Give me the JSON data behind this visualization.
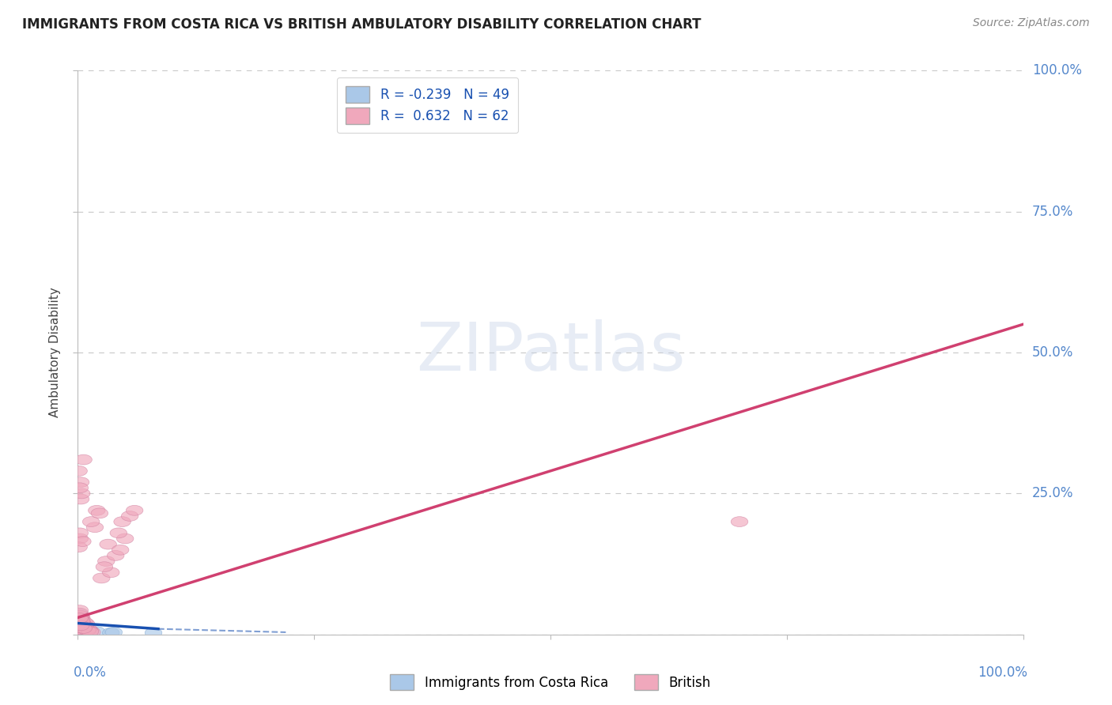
{
  "title": "IMMIGRANTS FROM COSTA RICA VS BRITISH AMBULATORY DISABILITY CORRELATION CHART",
  "source": "Source: ZipAtlas.com",
  "ylabel": "Ambulatory Disability",
  "legend_labels": [
    "Immigrants from Costa Rica",
    "British"
  ],
  "blue_R": -0.239,
  "blue_N": 49,
  "pink_R": 0.632,
  "pink_N": 62,
  "blue_color": "#aac8e8",
  "pink_color": "#f0a8bc",
  "blue_edge_color": "#80a8d0",
  "pink_edge_color": "#d080a0",
  "blue_line_color": "#1850b0",
  "pink_line_color": "#d04070",
  "background_color": "#ffffff",
  "grid_color": "#c8c8c8",
  "title_color": "#222222",
  "source_color": "#888888",
  "axis_label_color": "#5588cc",
  "legend_label_color": "#1850b0",
  "blue_scatter_x": [
    0.001,
    0.002,
    0.001,
    0.003,
    0.002,
    0.003,
    0.004,
    0.005,
    0.002,
    0.001,
    0.004,
    0.006,
    0.007,
    0.002,
    0.001,
    0.005,
    0.003,
    0.002,
    0.001,
    0.001,
    0.002,
    0.004,
    0.001,
    0.002,
    0.003,
    0.005,
    0.002,
    0.001,
    0.003,
    0.002,
    0.006,
    0.001,
    0.003,
    0.002,
    0.001,
    0.02,
    0.035,
    0.038,
    0.08,
    0.001,
    0.001,
    0.002,
    0.001,
    0.003,
    0.002,
    0.001,
    0.002,
    0.003,
    0.001
  ],
  "blue_scatter_y": [
    0.01,
    0.015,
    0.008,
    0.02,
    0.012,
    0.009,
    0.006,
    0.004,
    0.018,
    0.011,
    0.014,
    0.005,
    0.003,
    0.021,
    0.009,
    0.007,
    0.016,
    0.022,
    0.019,
    0.007,
    0.014,
    0.01,
    0.028,
    0.009,
    0.012,
    0.006,
    0.015,
    0.024,
    0.011,
    0.018,
    0.004,
    0.031,
    0.007,
    0.012,
    0.02,
    0.005,
    0.003,
    0.004,
    0.003,
    0.038,
    0.025,
    0.018,
    0.015,
    0.01,
    0.022,
    0.03,
    0.02,
    0.008,
    0.012
  ],
  "pink_scatter_x": [
    0.001,
    0.003,
    0.002,
    0.004,
    0.005,
    0.008,
    0.01,
    0.006,
    0.003,
    0.002,
    0.009,
    0.013,
    0.015,
    0.004,
    0.002,
    0.011,
    0.007,
    0.003,
    0.002,
    0.002,
    0.005,
    0.008,
    0.002,
    0.004,
    0.006,
    0.01,
    0.003,
    0.002,
    0.007,
    0.004,
    0.013,
    0.002,
    0.006,
    0.003,
    0.002,
    0.018,
    0.02,
    0.014,
    0.023,
    0.002,
    0.001,
    0.003,
    0.002,
    0.005,
    0.004,
    0.001,
    0.003,
    0.006,
    0.002,
    0.025,
    0.03,
    0.035,
    0.04,
    0.028,
    0.032,
    0.045,
    0.05,
    0.043,
    0.047,
    0.055,
    0.06,
    0.7
  ],
  "pink_scatter_y": [
    0.013,
    0.02,
    0.01,
    0.028,
    0.018,
    0.011,
    0.009,
    0.005,
    0.024,
    0.015,
    0.019,
    0.007,
    0.004,
    0.03,
    0.012,
    0.01,
    0.022,
    0.033,
    0.026,
    0.009,
    0.02,
    0.014,
    0.038,
    0.012,
    0.018,
    0.007,
    0.021,
    0.034,
    0.015,
    0.024,
    0.005,
    0.043,
    0.011,
    0.016,
    0.029,
    0.19,
    0.22,
    0.2,
    0.215,
    0.17,
    0.155,
    0.24,
    0.18,
    0.165,
    0.25,
    0.29,
    0.27,
    0.31,
    0.26,
    0.1,
    0.13,
    0.11,
    0.14,
    0.12,
    0.16,
    0.15,
    0.17,
    0.18,
    0.2,
    0.21,
    0.22,
    0.2
  ]
}
